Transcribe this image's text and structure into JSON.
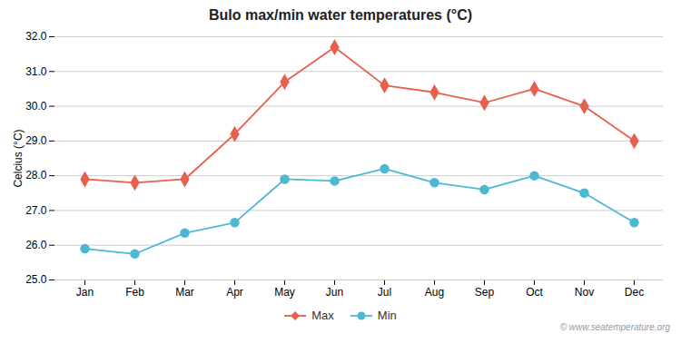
{
  "chart_data": {
    "type": "line",
    "title": "Bulo max/min water temperatures (°C)",
    "ylabel": "Celcius (°C)",
    "categories": [
      "Jan",
      "Feb",
      "Mar",
      "Apr",
      "May",
      "Jun",
      "Jul",
      "Aug",
      "Sep",
      "Oct",
      "Nov",
      "Dec"
    ],
    "series": [
      {
        "name": "Max",
        "color": "#e8604c",
        "marker": "diamond",
        "values": [
          27.9,
          27.8,
          27.9,
          29.2,
          30.7,
          31.7,
          30.6,
          30.4,
          30.1,
          30.5,
          30.0,
          29.0
        ]
      },
      {
        "name": "Min",
        "color": "#4db8d4",
        "marker": "circle",
        "values": [
          25.9,
          25.75,
          26.35,
          26.65,
          27.9,
          27.85,
          28.2,
          27.8,
          27.6,
          28.0,
          27.5,
          26.65
        ]
      }
    ],
    "ylim": [
      25,
      32
    ],
    "yticks": [
      25,
      26,
      27,
      28,
      29,
      30,
      31,
      32
    ],
    "grid": true,
    "legend": "bottom",
    "annotations": [
      "© www.seatemperature.org"
    ]
  }
}
